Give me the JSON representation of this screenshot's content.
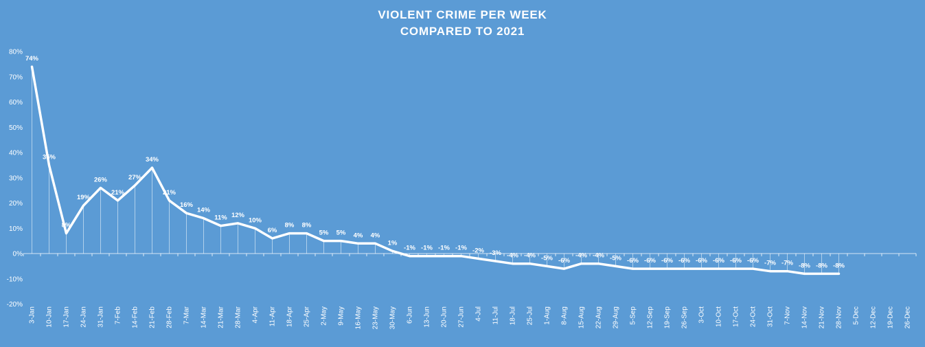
{
  "chart_data": {
    "type": "line",
    "title": "VIOLENT CRIME PER WEEK",
    "subtitle": "COMPARED TO 2021",
    "xlabel": "",
    "ylabel": "",
    "ylim": [
      -20,
      80
    ],
    "y_ticks": [
      "-20%",
      "-10%",
      "0%",
      "10%",
      "20%",
      "30%",
      "40%",
      "50%",
      "60%",
      "70%",
      "80%"
    ],
    "y_tick_values": [
      -20,
      -10,
      0,
      10,
      20,
      30,
      40,
      50,
      60,
      70,
      80
    ],
    "grid": false,
    "drop_lines": true,
    "line_color": "#ffffff",
    "background_color": "#5b9bd5",
    "categories": [
      "3-Jan",
      "10-Jan",
      "17-Jan",
      "24-Jan",
      "31-Jan",
      "7-Feb",
      "14-Feb",
      "21-Feb",
      "28-Feb",
      "7-Mar",
      "14-Mar",
      "21-Mar",
      "28-Mar",
      "4-Apr",
      "11-Apr",
      "18-Apr",
      "25-Apr",
      "2-May",
      "9-May",
      "16-May",
      "23-May",
      "30-May",
      "6-Jun",
      "13-Jun",
      "20-Jun",
      "27-Jun",
      "4-Jul",
      "11-Jul",
      "18-Jul",
      "25-Jul",
      "1-Aug",
      "8-Aug",
      "15-Aug",
      "22-Aug",
      "29-Aug",
      "5-Sep",
      "12-Sep",
      "19-Sep",
      "26-Sep",
      "3-Oct",
      "10-Oct",
      "17-Oct",
      "24-Oct",
      "31-Oct",
      "7-Nov",
      "14-Nov",
      "21-Nov",
      "28-Nov",
      "5-Dec",
      "12-Dec",
      "19-Dec",
      "26-Dec"
    ],
    "series": [
      {
        "values": [
          74,
          35,
          8,
          19,
          26,
          21,
          27,
          34,
          21,
          16,
          14,
          11,
          12,
          10,
          6,
          8,
          8,
          5,
          5,
          4,
          4,
          1,
          -1,
          -1,
          -1,
          -1,
          -2,
          -3,
          -4,
          -4,
          -5,
          -6,
          -4,
          -4,
          -5,
          -6,
          -6,
          -6,
          -6,
          -6,
          -6,
          -6,
          -6,
          -7,
          -7,
          -8,
          -8,
          -8,
          null,
          null,
          null,
          null
        ],
        "labels": [
          "74%",
          "35%",
          "8%",
          "19%",
          "26%",
          "21%",
          "27%",
          "34%",
          "21%",
          "16%",
          "14%",
          "11%",
          "12%",
          "10%",
          "6%",
          "8%",
          "8%",
          "5%",
          "5%",
          "4%",
          "4%",
          "1%",
          "-1%",
          "-1%",
          "-1%",
          "-1%",
          "-2%",
          "-3%",
          "-4%",
          "-4%",
          "-5%",
          "-6%",
          "-4%",
          "-4%",
          "-5%",
          "-6%",
          "-6%",
          "-6%",
          "-6%",
          "-6%",
          "-6%",
          "-6%",
          "-6%",
          "-7%",
          "-7%",
          "-8%",
          "-8%",
          "-8%",
          "",
          "",
          "",
          ""
        ]
      }
    ]
  }
}
